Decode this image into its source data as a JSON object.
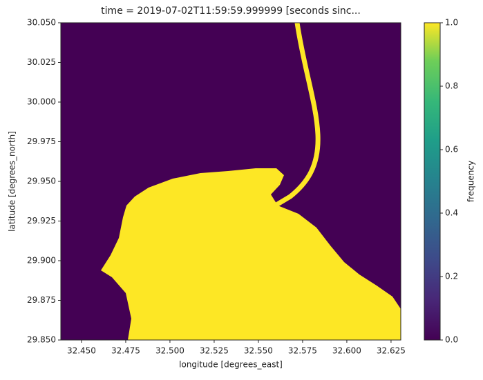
{
  "chart_data": {
    "type": "raster",
    "title": "time = 2019-07-02T11:59:59.999999 [seconds sinc...",
    "x_label": "longitude [degrees_east]",
    "y_label": "latitude [degrees_north]",
    "colorbar_label": "frequency",
    "xlim": [
      32.4383,
      32.6305
    ],
    "xticks": [
      {
        "value": 32.45,
        "label": "32.450"
      },
      {
        "value": 32.475,
        "label": "32.475"
      },
      {
        "value": 32.5,
        "label": "32.500"
      },
      {
        "value": 32.525,
        "label": "32.525"
      },
      {
        "value": 32.55,
        "label": "32.550"
      },
      {
        "value": 32.575,
        "label": "32.575"
      },
      {
        "value": 32.6,
        "label": "32.600"
      },
      {
        "value": 32.625,
        "label": "32.625"
      }
    ],
    "ylim": [
      29.85,
      30.05
    ],
    "yticks": [
      {
        "value": 29.85,
        "label": "29.850"
      },
      {
        "value": 29.875,
        "label": "29.875"
      },
      {
        "value": 29.9,
        "label": "29.900"
      },
      {
        "value": 29.925,
        "label": "29.925"
      },
      {
        "value": 29.95,
        "label": "29.950"
      },
      {
        "value": 29.975,
        "label": "29.975"
      },
      {
        "value": 30.0,
        "label": "30.000"
      },
      {
        "value": 30.025,
        "label": "30.025"
      },
      {
        "value": 30.05,
        "label": "30.050"
      }
    ],
    "clim": [
      0,
      1
    ],
    "cticks": [
      {
        "value": 0,
        "label": "0.0"
      },
      {
        "value": 0.2,
        "label": "0.2"
      },
      {
        "value": 0.4,
        "label": "0.4"
      },
      {
        "value": 0.6,
        "label": "0.6"
      },
      {
        "value": 0.8,
        "label": "0.8"
      },
      {
        "value": 1,
        "label": "1.0"
      }
    ],
    "colors": [
      "#440154",
      "#fde725"
    ]
  }
}
